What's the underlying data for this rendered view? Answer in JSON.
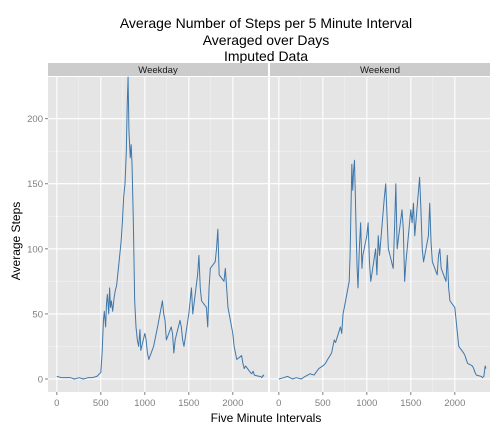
{
  "chart_data": {
    "type": "line",
    "title": [
      "Average Number of Steps per 5 Minute Interval",
      "Averaged over Days",
      "Imputed Data"
    ],
    "xlabel": "Five Minute Intervals",
    "ylabel": "Average Steps",
    "xlim": [
      -100,
      2400
    ],
    "ylim": [
      -10,
      232
    ],
    "xticks": [
      0,
      500,
      1000,
      1500,
      2000
    ],
    "yticks": [
      0,
      50,
      100,
      150,
      200
    ],
    "grid": true,
    "line_color": "#3f77aa",
    "panels": [
      {
        "label": "Weekday",
        "x": [
          0,
          55,
          100,
          155,
          200,
          255,
          300,
          355,
          400,
          455,
          500,
          515,
          530,
          540,
          555,
          565,
          575,
          590,
          600,
          610,
          620,
          635,
          650,
          665,
          680,
          700,
          715,
          730,
          745,
          760,
          775,
          790,
          800,
          810,
          820,
          835,
          845,
          855,
          870,
          885,
          900,
          915,
          930,
          945,
          955,
          1000,
          1015,
          1030,
          1045,
          1100,
          1115,
          1130,
          1145,
          1200,
          1215,
          1230,
          1245,
          1300,
          1315,
          1330,
          1345,
          1400,
          1415,
          1430,
          1445,
          1500,
          1515,
          1530,
          1545,
          1600,
          1615,
          1630,
          1645,
          1700,
          1715,
          1730,
          1745,
          1800,
          1815,
          1830,
          1845,
          1900,
          1915,
          1930,
          1945,
          2000,
          2015,
          2030,
          2045,
          2100,
          2115,
          2130,
          2145,
          2200,
          2215,
          2230,
          2245,
          2300,
          2315,
          2330,
          2345,
          2355
        ],
        "y": [
          2,
          1,
          1,
          1,
          0,
          1,
          0,
          1,
          1,
          2,
          5,
          20,
          45,
          52,
          40,
          58,
          65,
          50,
          70,
          55,
          60,
          52,
          62,
          68,
          72,
          85,
          95,
          105,
          120,
          140,
          150,
          175,
          210,
          232,
          190,
          170,
          180,
          165,
          120,
          60,
          40,
          30,
          25,
          38,
          22,
          35,
          30,
          20,
          15,
          25,
          30,
          35,
          40,
          60,
          50,
          45,
          30,
          40,
          35,
          20,
          30,
          45,
          40,
          30,
          25,
          50,
          60,
          70,
          50,
          80,
          95,
          70,
          60,
          55,
          40,
          70,
          85,
          90,
          100,
          115,
          80,
          75,
          85,
          70,
          55,
          35,
          25,
          20,
          15,
          18,
          12,
          8,
          10,
          5,
          4,
          6,
          3,
          2,
          2,
          1,
          3,
          2
        ]
      },
      {
        "label": "Weekend",
        "x": [
          0,
          55,
          100,
          155,
          200,
          255,
          300,
          355,
          400,
          455,
          500,
          530,
          555,
          600,
          615,
          630,
          645,
          700,
          715,
          730,
          745,
          800,
          810,
          820,
          830,
          840,
          850,
          860,
          870,
          880,
          890,
          900,
          915,
          930,
          945,
          955,
          1000,
          1015,
          1030,
          1045,
          1100,
          1115,
          1130,
          1145,
          1200,
          1215,
          1230,
          1245,
          1300,
          1315,
          1330,
          1345,
          1400,
          1415,
          1430,
          1445,
          1500,
          1515,
          1530,
          1545,
          1600,
          1615,
          1630,
          1645,
          1700,
          1715,
          1730,
          1745,
          1800,
          1815,
          1830,
          1845,
          1900,
          1915,
          1930,
          1945,
          2000,
          2015,
          2030,
          2045,
          2100,
          2115,
          2130,
          2145,
          2200,
          2215,
          2230,
          2245,
          2300,
          2315,
          2330,
          2345,
          2355
        ],
        "y": [
          0,
          1,
          2,
          0,
          1,
          0,
          2,
          4,
          3,
          8,
          10,
          12,
          15,
          20,
          25,
          30,
          28,
          40,
          35,
          50,
          55,
          75,
          95,
          130,
          165,
          145,
          160,
          168,
          140,
          110,
          85,
          70,
          100,
          120,
          85,
          95,
          110,
          120,
          90,
          75,
          100,
          80,
          110,
          95,
          140,
          150,
          125,
          100,
          85,
          115,
          150,
          100,
          130,
          115,
          75,
          90,
          130,
          120,
          135,
          110,
          155,
          130,
          100,
          90,
          110,
          135,
          105,
          90,
          80,
          95,
          100,
          85,
          75,
          95,
          70,
          60,
          55,
          45,
          35,
          25,
          20,
          18,
          15,
          12,
          10,
          8,
          5,
          3,
          2,
          1,
          2,
          10,
          8
        ]
      }
    ]
  }
}
